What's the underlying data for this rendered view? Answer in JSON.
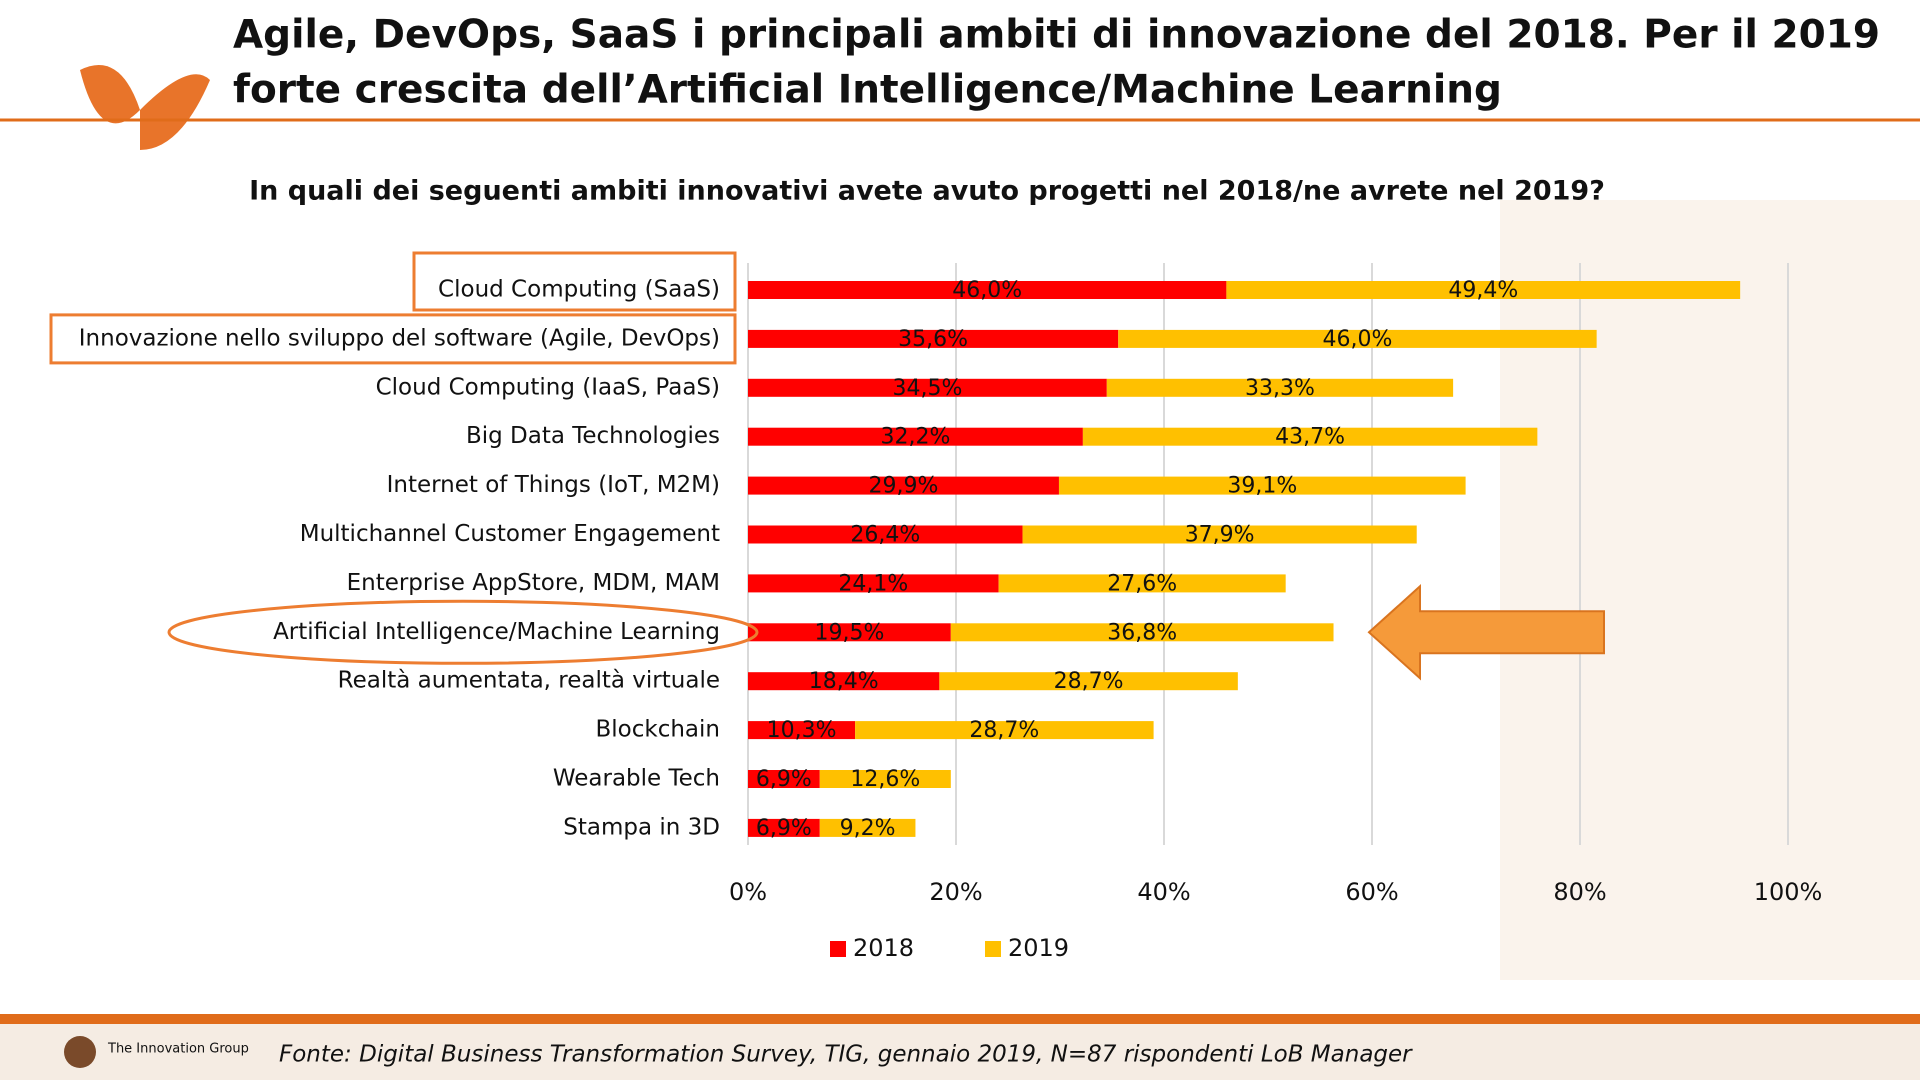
{
  "chart_data": {
    "type": "stacked-bar-horizontal",
    "title": [
      "Agile, DevOps, SaaS i principali ambiti di innovazione del 2018. Per il 2019",
      "forte crescita dell’Artificial Intelligence/Machine Learning"
    ],
    "subtitle": "In quali dei seguenti ambiti innovativi avete avuto progetti nel 2018/ne avrete nel 2019?",
    "categories": [
      "Cloud Computing (SaaS)",
      "Innovazione nello sviluppo del software (Agile, DevOps)",
      "Cloud Computing (IaaS, PaaS)",
      "Big Data Technologies",
      "Internet of Things (IoT, M2M)",
      "Multichannel Customer Engagement",
      "Enterprise AppStore, MDM, MAM",
      "Artificial Intelligence/Machine Learning",
      "Realtà aumentata, realtà virtuale",
      "Blockchain",
      "Wearable Tech",
      "Stampa in 3D"
    ],
    "series": [
      {
        "name": "2018",
        "color": "#ff0000",
        "values": [
          46.0,
          35.6,
          34.5,
          32.2,
          29.9,
          26.4,
          24.1,
          19.5,
          18.4,
          10.3,
          6.9,
          6.9
        ],
        "value_labels": [
          "46,0%",
          "35,6%",
          "34,5%",
          "32,2%",
          "29,9%",
          "26,4%",
          "24,1%",
          "19,5%",
          "18,4%",
          "10,3%",
          "6,9%",
          "6,9%"
        ]
      },
      {
        "name": "2019",
        "color": "#ffc000",
        "values": [
          49.4,
          46.0,
          33.3,
          43.7,
          39.1,
          37.9,
          27.6,
          36.8,
          28.7,
          28.7,
          12.6,
          9.2
        ],
        "value_labels": [
          "49,4%",
          "46,0%",
          "33,3%",
          "43,7%",
          "39,1%",
          "37,9%",
          "27,6%",
          "36,8%",
          "28,7%",
          "28,7%",
          "12,6%",
          "9,2%"
        ]
      }
    ],
    "xlim": [
      0,
      100
    ],
    "xticks": [
      {
        "value": 0,
        "label": "0%"
      },
      {
        "value": 20,
        "label": "20%"
      },
      {
        "value": 40,
        "label": "40%"
      },
      {
        "value": 60,
        "label": "60%"
      },
      {
        "value": 80,
        "label": "80%"
      },
      {
        "value": 100,
        "label": "100%"
      }
    ],
    "grid": true,
    "legend": "bottom",
    "source": "Fonte: Digital Business Transformation Survey, TIG, gennaio 2019, N=87 rispondenti LoB Manager",
    "logo": "The Innovation Group"
  }
}
